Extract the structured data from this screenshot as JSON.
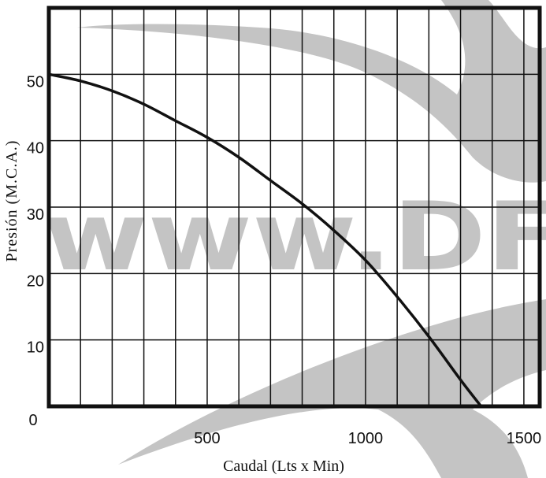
{
  "chart_data": {
    "type": "line",
    "title": "",
    "xlabel": "Caudal (Lts x Min)",
    "ylabel": "Presión (M.C.A.)",
    "xlim": [
      0,
      1550
    ],
    "ylim": [
      0,
      60
    ],
    "x_ticks": [
      {
        "value": 0,
        "label": "0"
      },
      {
        "value": 500,
        "label": "500"
      },
      {
        "value": 1000,
        "label": "1000"
      },
      {
        "value": 1500,
        "label": "1500"
      }
    ],
    "y_ticks": [
      {
        "value": 10,
        "label": "10"
      },
      {
        "value": 20,
        "label": "20"
      },
      {
        "value": 30,
        "label": "30"
      },
      {
        "value": 40,
        "label": "40"
      },
      {
        "value": 50,
        "label": "50"
      }
    ],
    "grid": true,
    "grid_x_step": 100,
    "grid_y_step": 10,
    "series": [
      {
        "points": [
          {
            "x": 0,
            "y": 50
          },
          {
            "x": 100,
            "y": 49
          },
          {
            "x": 200,
            "y": 47.5
          },
          {
            "x": 300,
            "y": 45.5
          },
          {
            "x": 400,
            "y": 43
          },
          {
            "x": 500,
            "y": 40.5
          },
          {
            "x": 600,
            "y": 37.5
          },
          {
            "x": 700,
            "y": 34
          },
          {
            "x": 800,
            "y": 30.5
          },
          {
            "x": 900,
            "y": 26.5
          },
          {
            "x": 1000,
            "y": 22
          },
          {
            "x": 1100,
            "y": 16.5
          },
          {
            "x": 1200,
            "y": 10.5
          },
          {
            "x": 1300,
            "y": 4
          },
          {
            "x": 1365,
            "y": 0
          }
        ]
      }
    ]
  },
  "watermark": {
    "text": "www.DF",
    "color": "#c4c4c4"
  }
}
